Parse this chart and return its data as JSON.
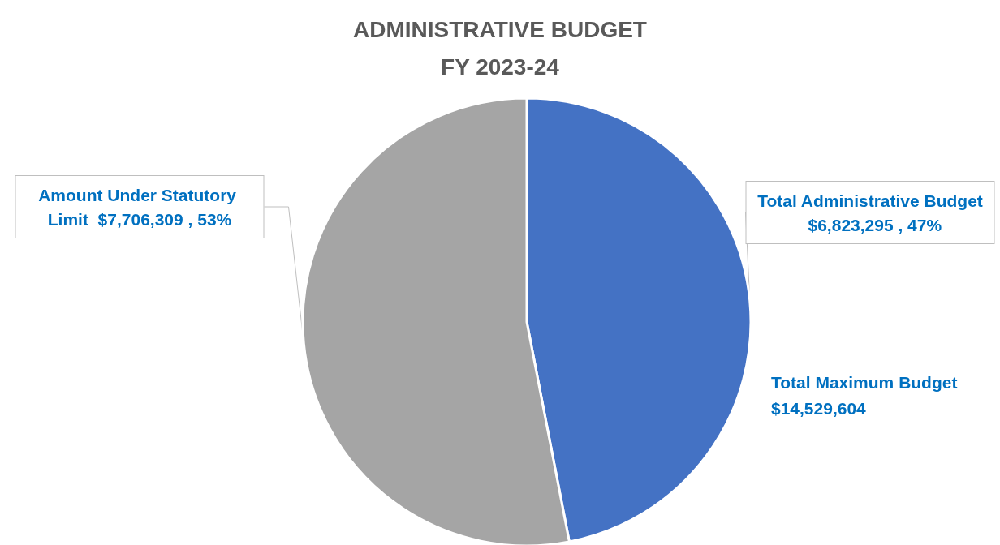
{
  "chart_data": {
    "type": "pie",
    "title": "ADMINISTRATIVE BUDGET\nFY 2023-24",
    "categories": [
      "Total Administrative Budget",
      "Amount Under Statutory Limit"
    ],
    "values": [
      6823295,
      7706309
    ],
    "value_labels": [
      "$6,823,295 , 47%",
      "$7,706,309 , 53%"
    ],
    "colors": [
      "#4472c4",
      "#a5a5a5"
    ],
    "annotations": [
      "Total Maximum Budget\n$14,529,604"
    ],
    "legend": false
  }
}
